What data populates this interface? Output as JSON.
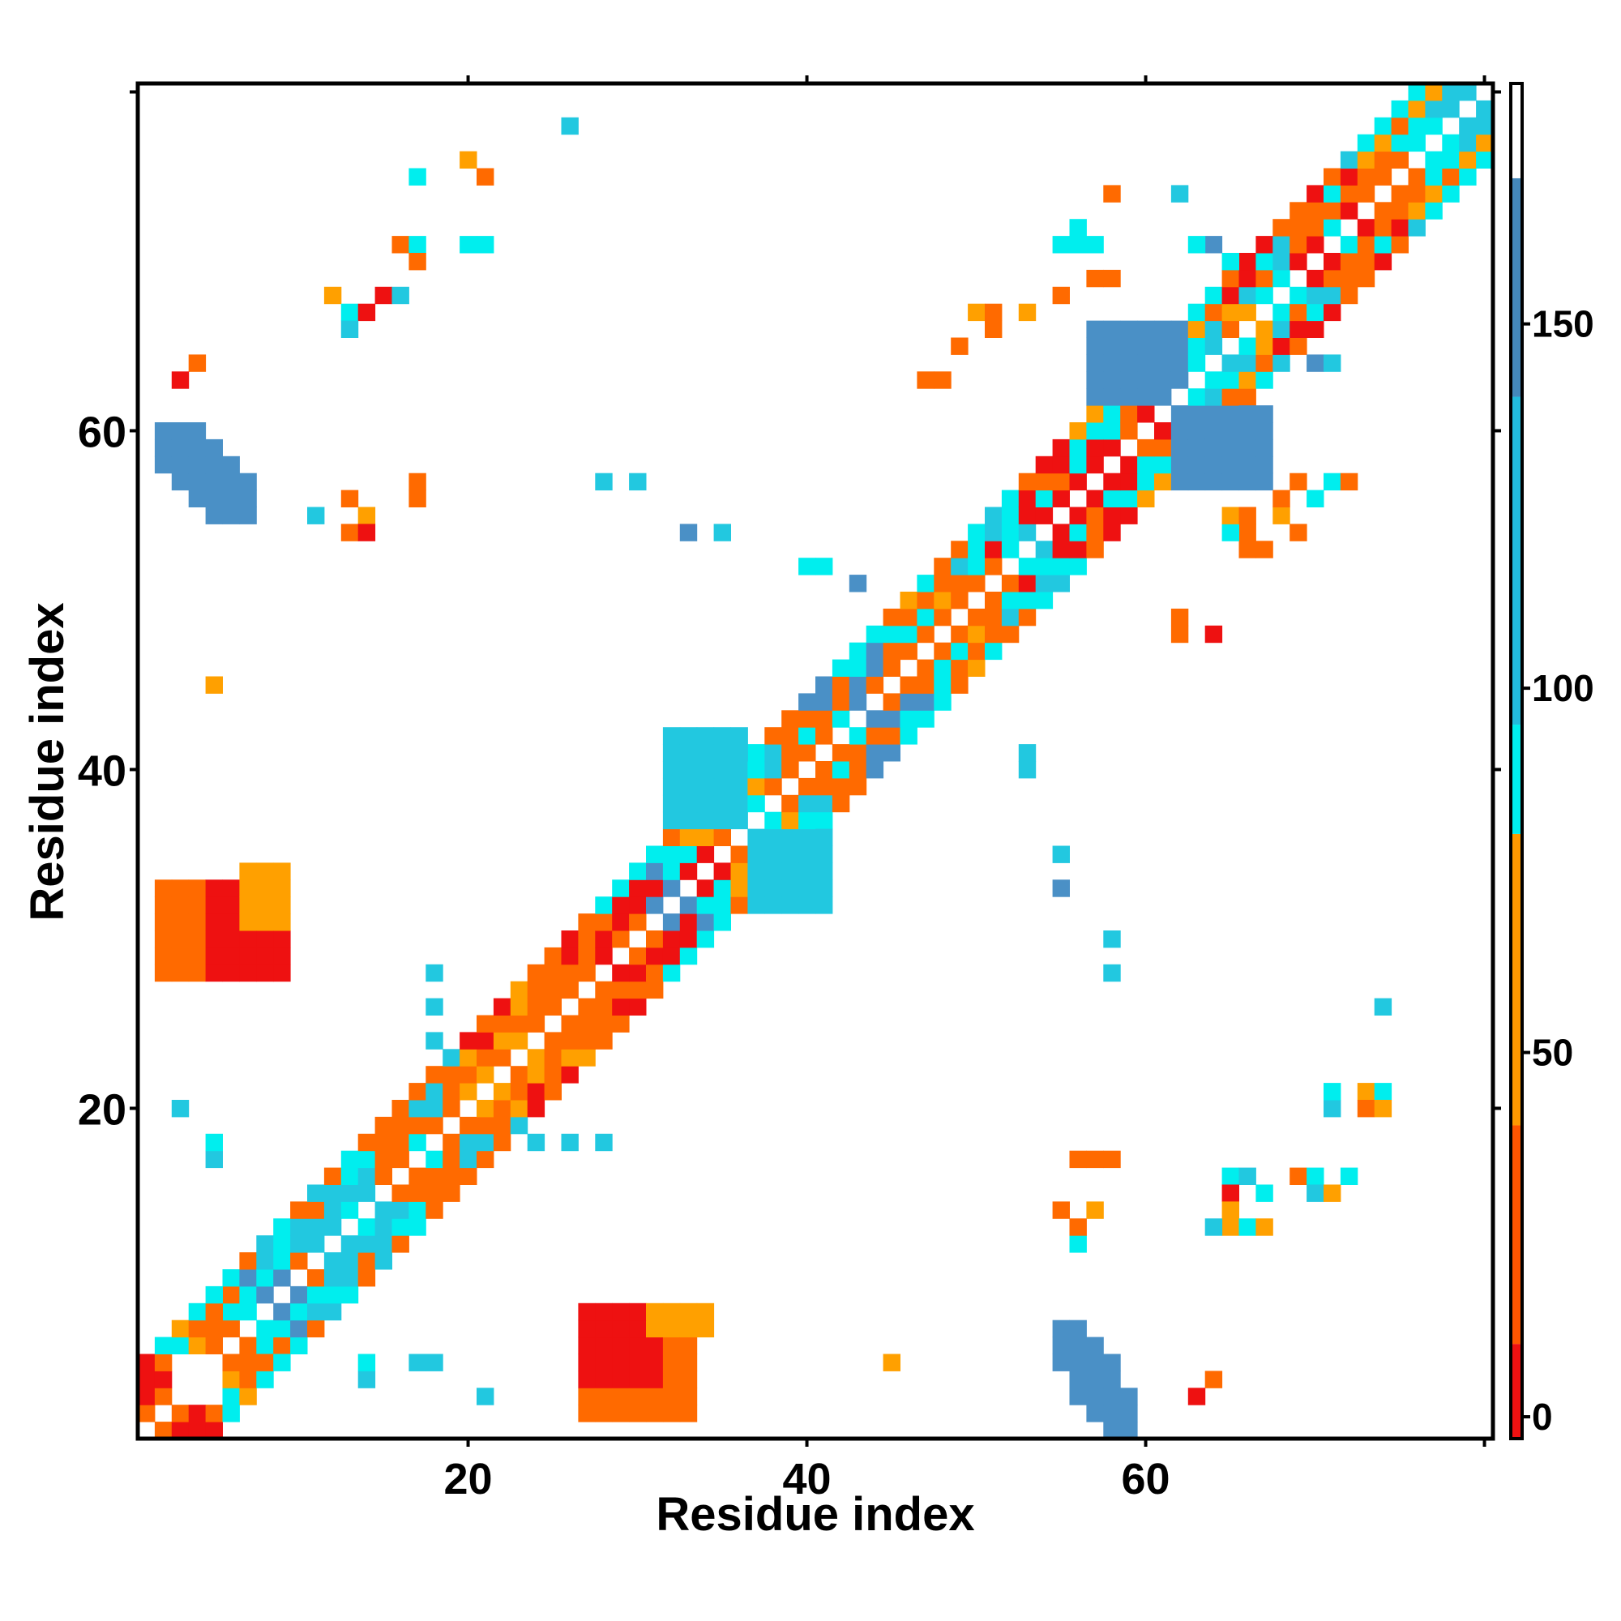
{
  "chart_data": {
    "type": "heatmap",
    "title": "",
    "xlabel": "Residue index",
    "ylabel": "Residue index",
    "n_residues": 80,
    "xlim": [
      1,
      81
    ],
    "ylim": [
      1,
      81
    ],
    "x_ticks": [
      20,
      40,
      60
    ],
    "y_ticks": [
      20,
      40,
      60
    ],
    "grid": false,
    "legend": "colorbar-right",
    "colorbar": {
      "min": -3,
      "max": 183,
      "ticks": [
        0,
        50,
        100,
        150
      ],
      "bands": [
        {
          "from": -3,
          "to": 10,
          "color": "#ee1111"
        },
        {
          "from": 10,
          "to": 40,
          "color": "#ff5500"
        },
        {
          "from": 40,
          "to": 80,
          "color": "#ff9900"
        },
        {
          "from": 80,
          "to": 95,
          "color": "#00eeee"
        },
        {
          "from": 95,
          "to": 140,
          "color": "#22bbdd"
        },
        {
          "from": 140,
          "to": 170,
          "color": "#4488bb"
        },
        {
          "from": 170,
          "to": 183,
          "color": "#ffffff"
        }
      ]
    },
    "color_classes": {
      "r": "#ee1111",
      "o": "#ff6a00",
      "y": "#ffa000",
      "c": "#00eeee",
      "t": "#22c8e0",
      "b": "#4a90c6"
    },
    "blocks": [
      {
        "ranges": [
          [
            1,
            2,
            4,
            5
          ]
        ],
        "tones": "ror",
        "step": 2
      },
      {
        "ranges": [
          [
            6,
            8,
            6,
            8
          ]
        ],
        "tones": "otcy"
      },
      {
        "ranges": [
          [
            9,
            11,
            9,
            11
          ]
        ],
        "tones": "ctbo"
      },
      {
        "ranges": [
          [
            12,
            15,
            12,
            15
          ]
        ],
        "tones": "octt"
      },
      {
        "ranges": [
          [
            16,
            19,
            16,
            19
          ]
        ],
        "tones": "ocot"
      },
      {
        "ranges": [
          [
            20,
            23,
            20,
            23
          ]
        ],
        "tones": "otoy"
      },
      {
        "ranges": [
          [
            24,
            27,
            24,
            27
          ]
        ],
        "tones": "oroy"
      },
      {
        "ranges": [
          [
            28,
            31,
            28,
            31
          ]
        ],
        "tones": "roro"
      },
      {
        "ranges": [
          [
            32,
            35,
            32,
            35
          ]
        ],
        "tones": "rrcb"
      },
      {
        "ranges": [
          [
            36,
            39,
            36,
            39
          ]
        ],
        "tones": "ocyt"
      },
      {
        "ranges": [
          [
            40,
            43,
            40,
            43
          ]
        ],
        "tones": "otco"
      },
      {
        "ranges": [
          [
            44,
            47,
            44,
            47
          ]
        ],
        "tones": "oocb"
      },
      {
        "ranges": [
          [
            48,
            51,
            48,
            51
          ]
        ],
        "tones": "ocoy"
      },
      {
        "ranges": [
          [
            52,
            55,
            52,
            55
          ]
        ],
        "tones": "rtoc"
      },
      {
        "ranges": [
          [
            56,
            59,
            56,
            59
          ]
        ],
        "tones": "rrco"
      },
      {
        "ranges": [
          [
            60,
            63,
            60,
            63
          ]
        ],
        "tones": "croy"
      },
      {
        "ranges": [
          [
            64,
            67,
            64,
            67
          ]
        ],
        "tones": "otcy"
      },
      {
        "ranges": [
          [
            68,
            71,
            68,
            71
          ]
        ],
        "tones": "ctor"
      },
      {
        "ranges": [
          [
            72,
            75,
            72,
            75
          ]
        ],
        "tones": "ocro"
      },
      {
        "ranges": [
          [
            76,
            80,
            76,
            80
          ]
        ],
        "tones": "coty"
      }
    ],
    "patches": [
      {
        "x": [
          2,
          7
        ],
        "y": [
          55,
          60
        ],
        "tone": "b",
        "band": 2
      },
      {
        "x": [
          55,
          59
        ],
        "y": [
          1,
          7
        ],
        "tone": "b",
        "band": 2
      },
      {
        "x": [
          57,
          62
        ],
        "y": [
          62,
          66
        ],
        "tone": "b",
        "band": 2
      },
      {
        "x": [
          62,
          67
        ],
        "y": [
          57,
          61
        ],
        "tone": "b",
        "band": 2
      },
      {
        "x": [
          32,
          36
        ],
        "y": [
          37,
          42
        ],
        "tone": "t",
        "band": 2
      },
      {
        "x": [
          37,
          41
        ],
        "y": [
          32,
          36
        ],
        "tone": "t",
        "band": 2
      },
      {
        "x": [
          2,
          6
        ],
        "y": [
          28,
          33
        ],
        "tone": "o",
        "band": 2
      },
      {
        "x": [
          27,
          33
        ],
        "y": [
          2,
          7
        ],
        "tone": "o",
        "band": 2
      },
      {
        "x": [
          5,
          9
        ],
        "y": [
          28,
          33
        ],
        "tone": "r",
        "band": 1
      },
      {
        "x": [
          27,
          31
        ],
        "y": [
          4,
          8
        ],
        "tone": "r",
        "band": 1
      },
      {
        "x": [
          7,
          9
        ],
        "y": [
          31,
          34
        ],
        "tone": "y",
        "band": 1
      },
      {
        "x": [
          31,
          34
        ],
        "y": [
          7,
          8
        ],
        "tone": "y",
        "band": 1
      }
    ],
    "singles": [
      [
        26,
        78,
        "t"
      ],
      [
        17,
        75,
        "c"
      ],
      [
        20,
        76,
        "y"
      ],
      [
        21,
        75,
        "o"
      ],
      [
        20,
        71,
        "c"
      ],
      [
        21,
        71,
        "c"
      ],
      [
        16,
        71,
        "o"
      ],
      [
        17,
        71,
        "c"
      ],
      [
        17,
        70,
        "o"
      ],
      [
        12,
        68,
        "y"
      ],
      [
        13,
        67,
        "c"
      ],
      [
        14,
        67,
        "r"
      ],
      [
        15,
        68,
        "r"
      ],
      [
        16,
        68,
        "t"
      ],
      [
        13,
        66,
        "t"
      ],
      [
        4,
        64,
        "o"
      ],
      [
        3,
        63,
        "r"
      ],
      [
        11,
        55,
        "t"
      ],
      [
        13,
        56,
        "o"
      ],
      [
        14,
        55,
        "y"
      ],
      [
        13,
        54,
        "o"
      ],
      [
        14,
        54,
        "r"
      ],
      [
        17,
        56,
        "o"
      ],
      [
        17,
        57,
        "o"
      ],
      [
        5,
        45,
        "y"
      ],
      [
        28,
        57,
        "t"
      ],
      [
        30,
        57,
        "t"
      ],
      [
        33,
        54,
        "b"
      ],
      [
        35,
        54,
        "t"
      ],
      [
        40,
        52,
        "c"
      ],
      [
        41,
        52,
        "c"
      ],
      [
        43,
        51,
        "b"
      ],
      [
        53,
        40,
        "t"
      ],
      [
        53,
        41,
        "t"
      ],
      [
        55,
        35,
        "t"
      ],
      [
        55,
        33,
        "b"
      ],
      [
        58,
        30,
        "t"
      ],
      [
        58,
        28,
        "t"
      ],
      [
        74,
        26,
        "t"
      ],
      [
        3,
        20,
        "t"
      ],
      [
        5,
        17,
        "t"
      ],
      [
        5,
        18,
        "c"
      ],
      [
        24,
        18,
        "t"
      ],
      [
        26,
        18,
        "t"
      ],
      [
        28,
        18,
        "t"
      ],
      [
        18,
        28,
        "t"
      ],
      [
        18,
        26,
        "t"
      ],
      [
        18,
        24,
        "t"
      ],
      [
        17,
        5,
        "t"
      ],
      [
        18,
        5,
        "t"
      ],
      [
        14,
        4,
        "t"
      ],
      [
        14,
        5,
        "c"
      ],
      [
        21,
        3,
        "t"
      ],
      [
        45,
        5,
        "y"
      ],
      [
        64,
        4,
        "o"
      ],
      [
        63,
        3,
        "r"
      ],
      [
        56,
        12,
        "c"
      ],
      [
        55,
        14,
        "o"
      ],
      [
        56,
        13,
        "o"
      ],
      [
        57,
        14,
        "y"
      ],
      [
        58,
        17,
        "o"
      ],
      [
        57,
        17,
        "o"
      ],
      [
        56,
        17,
        "o"
      ],
      [
        65,
        16,
        "c"
      ],
      [
        66,
        16,
        "t"
      ],
      [
        65,
        15,
        "r"
      ],
      [
        67,
        15,
        "c"
      ],
      [
        65,
        14,
        "y"
      ],
      [
        65,
        13,
        "y"
      ],
      [
        64,
        13,
        "t"
      ],
      [
        66,
        13,
        "c"
      ],
      [
        67,
        13,
        "y"
      ],
      [
        69,
        16,
        "o"
      ],
      [
        70,
        16,
        "c"
      ],
      [
        70,
        15,
        "t"
      ],
      [
        71,
        15,
        "y"
      ],
      [
        71,
        20,
        "t"
      ],
      [
        71,
        21,
        "c"
      ],
      [
        73,
        21,
        "y"
      ],
      [
        74,
        21,
        "c"
      ],
      [
        73,
        20,
        "o"
      ],
      [
        74,
        20,
        "y"
      ],
      [
        72,
        16,
        "c"
      ],
      [
        56,
        72,
        "c"
      ],
      [
        55,
        71,
        "c"
      ],
      [
        56,
        71,
        "c"
      ],
      [
        57,
        71,
        "c"
      ],
      [
        57,
        69,
        "o"
      ],
      [
        55,
        68,
        "o"
      ],
      [
        58,
        69,
        "o"
      ],
      [
        58,
        74,
        "o"
      ],
      [
        49,
        65,
        "o"
      ],
      [
        47,
        63,
        "o"
      ],
      [
        48,
        63,
        "o"
      ],
      [
        50,
        67,
        "y"
      ],
      [
        51,
        67,
        "o"
      ],
      [
        51,
        66,
        "o"
      ],
      [
        53,
        67,
        "y"
      ],
      [
        62,
        74,
        "t"
      ],
      [
        64,
        71,
        "b"
      ],
      [
        63,
        71,
        "c"
      ],
      [
        65,
        70,
        "c"
      ],
      [
        66,
        65,
        "c"
      ],
      [
        68,
        64,
        "t"
      ],
      [
        70,
        64,
        "b"
      ],
      [
        71,
        64,
        "t"
      ],
      [
        69,
        57,
        "o"
      ],
      [
        71,
        57,
        "c"
      ],
      [
        72,
        57,
        "c"
      ],
      [
        70,
        56,
        "c"
      ],
      [
        72,
        57,
        "o"
      ],
      [
        64,
        48,
        "r"
      ],
      [
        62,
        48,
        "o"
      ],
      [
        62,
        49,
        "o"
      ],
      [
        66,
        54,
        "o"
      ],
      [
        66,
        53,
        "o"
      ],
      [
        67,
        53,
        "o"
      ],
      [
        65,
        54,
        "c"
      ],
      [
        65,
        55,
        "y"
      ],
      [
        66,
        55,
        "o"
      ],
      [
        68,
        55,
        "y"
      ],
      [
        68,
        56,
        "o"
      ],
      [
        69,
        54,
        "o"
      ]
    ]
  }
}
